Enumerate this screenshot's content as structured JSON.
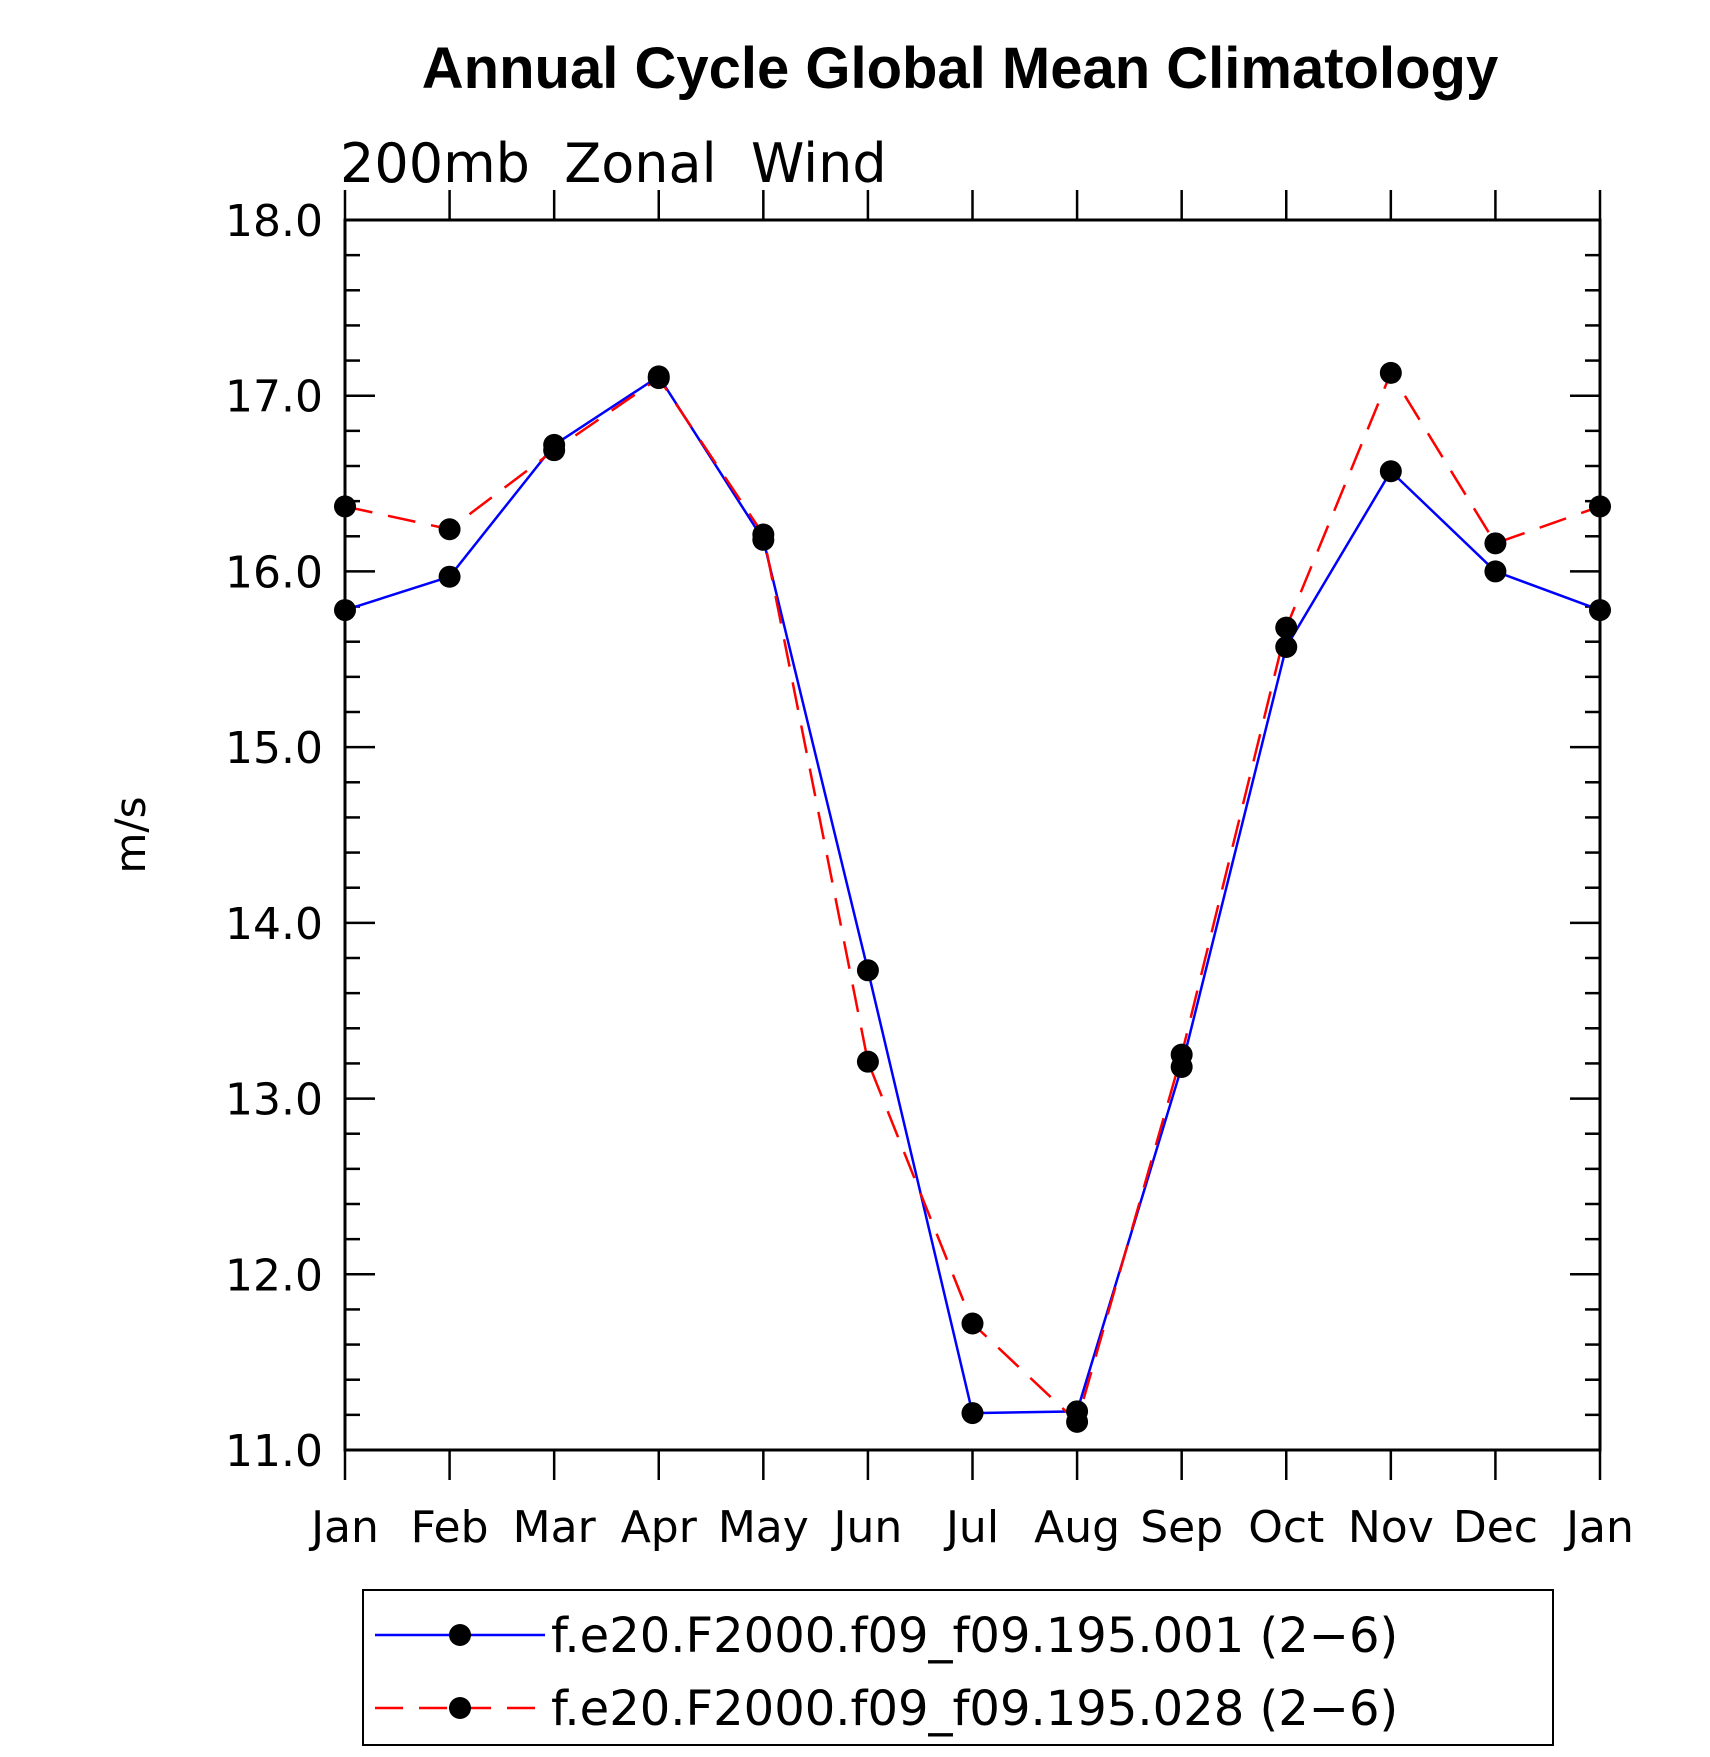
{
  "chart_data": {
    "type": "line",
    "title": "Annual Cycle Global Mean Climatology",
    "subtitle": "200mb  Zonal  Wind",
    "xlabel": "",
    "ylabel": "m/s",
    "ylim": [
      11.0,
      18.0
    ],
    "yticks": [
      11.0,
      12.0,
      13.0,
      14.0,
      15.0,
      16.0,
      17.0,
      18.0
    ],
    "ytick_labels": [
      "11.0",
      "12.0",
      "13.0",
      "14.0",
      "15.0",
      "16.0",
      "17.0",
      "18.0"
    ],
    "categories": [
      "Jan",
      "Feb",
      "Mar",
      "Apr",
      "May",
      "Jun",
      "Jul",
      "Aug",
      "Sep",
      "Oct",
      "Nov",
      "Dec",
      "Jan"
    ],
    "grid": false,
    "legend_position": "bottom",
    "series": [
      {
        "name": "f.e20.F2000.f09_f09.195.001 (2−6)",
        "color": "#0000ff",
        "line_style": "solid",
        "marker": "filled-circle",
        "values": [
          15.78,
          15.97,
          16.72,
          17.11,
          16.18,
          13.73,
          11.21,
          11.22,
          13.18,
          15.57,
          16.57,
          16.0,
          15.78
        ]
      },
      {
        "name": "f.e20.F2000.f09_f09.195.028 (2−6)",
        "color": "#ff0000",
        "line_style": "dashed",
        "marker": "filled-circle",
        "values": [
          16.37,
          16.24,
          16.69,
          17.1,
          16.21,
          13.21,
          11.72,
          11.16,
          13.25,
          15.68,
          17.13,
          16.16,
          16.37
        ]
      }
    ]
  }
}
